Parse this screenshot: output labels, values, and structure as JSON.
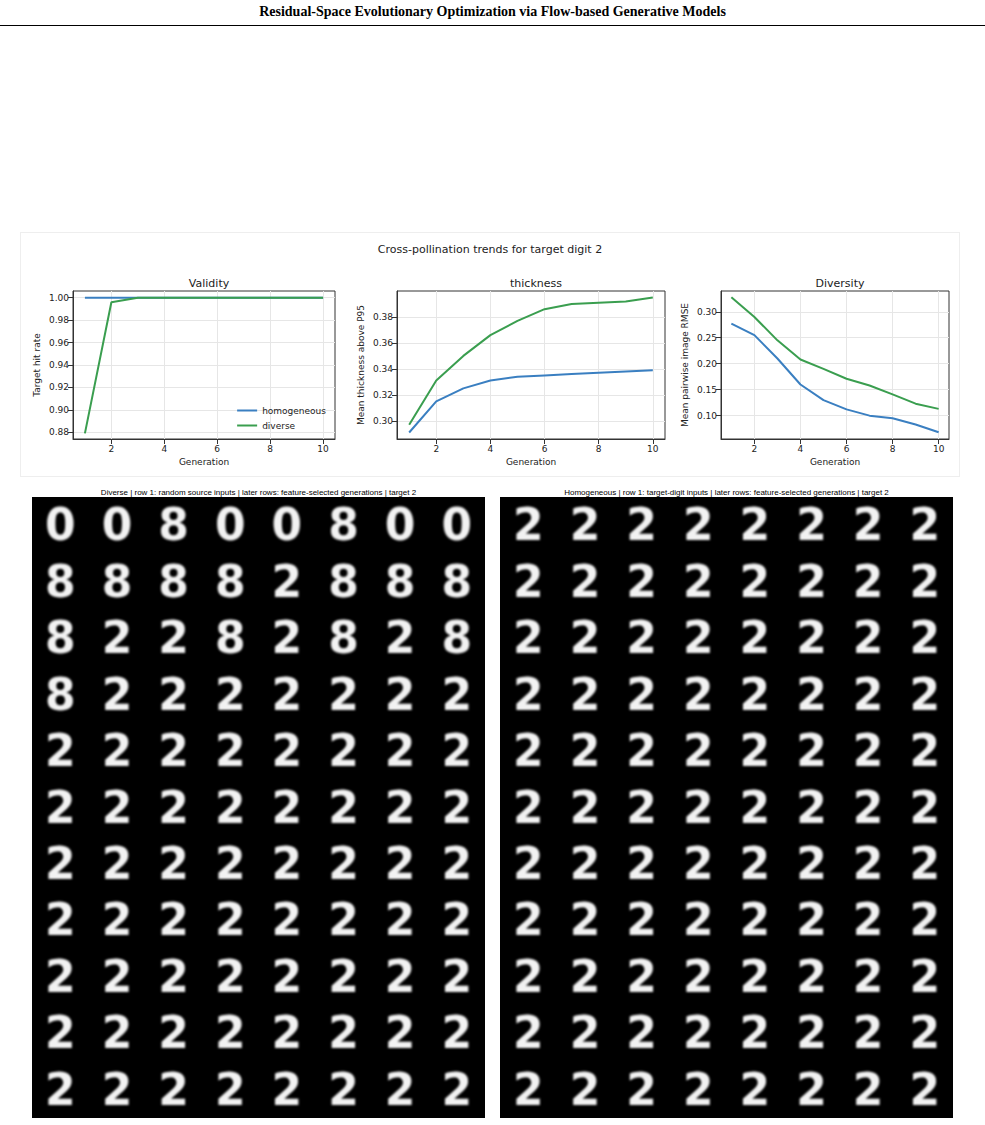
{
  "page_title": "Residual-Space Evolutionary Optimization via Flow-based Generative Models",
  "figure_title": "Cross-pollination trends for target digit 2",
  "chart_data": [
    {
      "type": "line",
      "title": "Validity",
      "x_label": "Generation",
      "y_label": "Target hit rate",
      "x": [
        1,
        2,
        3,
        4,
        5,
        6,
        7,
        8,
        9,
        10
      ],
      "series": [
        {
          "name": "homogeneous",
          "color": "#3a7fc1",
          "values": [
            1.0,
            1.0,
            1.0,
            1.0,
            1.0,
            1.0,
            1.0,
            1.0,
            1.0,
            1.0
          ]
        },
        {
          "name": "diverse",
          "color": "#3a9e4f",
          "values": [
            0.879,
            0.996,
            1.0,
            1.0,
            1.0,
            1.0,
            1.0,
            1.0,
            1.0,
            1.0
          ]
        }
      ],
      "xlim": [
        0.55,
        10.45
      ],
      "xticks": [
        2,
        4,
        6,
        8,
        10
      ],
      "ylim": [
        0.874,
        1.006
      ],
      "yticks": [
        {
          "value": 0.88,
          "label": "0.88"
        },
        {
          "value": 0.9,
          "label": "0.90"
        },
        {
          "value": 0.92,
          "label": "0.92"
        },
        {
          "value": 0.94,
          "label": "0.94"
        },
        {
          "value": 0.96,
          "label": "0.96"
        },
        {
          "value": 0.98,
          "label": "0.98"
        },
        {
          "value": 1.0,
          "label": "1.00"
        }
      ],
      "grid": true,
      "legend": "lower right"
    },
    {
      "type": "line",
      "title": "thickness",
      "x_label": "Generation",
      "y_label": "Mean thickness above P95",
      "x": [
        1,
        2,
        3,
        4,
        5,
        6,
        7,
        8,
        9,
        10
      ],
      "series": [
        {
          "name": "homogeneous",
          "color": "#3a7fc1",
          "values": [
            0.291,
            0.315,
            0.325,
            0.331,
            0.334,
            0.335,
            0.336,
            0.337,
            0.338,
            0.339
          ]
        },
        {
          "name": "diverse",
          "color": "#3a9e4f",
          "values": [
            0.297,
            0.331,
            0.35,
            0.366,
            0.377,
            0.386,
            0.39,
            0.391,
            0.392,
            0.395
          ]
        }
      ],
      "xlim": [
        0.55,
        10.45
      ],
      "xticks": [
        2,
        4,
        6,
        8,
        10
      ],
      "ylim": [
        0.286,
        0.4
      ],
      "yticks": [
        {
          "value": 0.3,
          "label": "0.30"
        },
        {
          "value": 0.32,
          "label": "0.32"
        },
        {
          "value": 0.34,
          "label": "0.34"
        },
        {
          "value": 0.36,
          "label": "0.36"
        },
        {
          "value": 0.38,
          "label": "0.38"
        }
      ],
      "grid": true
    },
    {
      "type": "line",
      "title": "Diversity",
      "x_label": "Generation",
      "y_label": "Mean pairwise image RMSE",
      "x": [
        1,
        2,
        3,
        4,
        5,
        6,
        7,
        8,
        9,
        10
      ],
      "series": [
        {
          "name": "homogeneous",
          "color": "#3a7fc1",
          "values": [
            0.277,
            0.255,
            0.21,
            0.16,
            0.13,
            0.112,
            0.1,
            0.095,
            0.083,
            0.068
          ]
        },
        {
          "name": "diverse",
          "color": "#3a9e4f",
          "values": [
            0.328,
            0.29,
            0.245,
            0.208,
            0.19,
            0.171,
            0.158,
            0.141,
            0.123,
            0.113
          ]
        }
      ],
      "xlim": [
        0.55,
        10.45
      ],
      "xticks": [
        2,
        4,
        6,
        8,
        10
      ],
      "ylim": [
        0.055,
        0.34
      ],
      "yticks": [
        {
          "value": 0.1,
          "label": "0.10"
        },
        {
          "value": 0.15,
          "label": "0.15"
        },
        {
          "value": 0.2,
          "label": "0.20"
        },
        {
          "value": 0.25,
          "label": "0.25"
        },
        {
          "value": 0.3,
          "label": "0.30"
        }
      ],
      "grid": true
    }
  ],
  "image_grids": [
    {
      "title": "Diverse | row 1: random source inputs | later rows: feature-selected generations | target 2",
      "rows": [
        [
          "0",
          "0",
          "8",
          "0",
          "0",
          "8",
          "0",
          "0"
        ],
        [
          "8",
          "8",
          "8",
          "8",
          "2",
          "8",
          "8",
          "8"
        ],
        [
          "8",
          "2",
          "2",
          "8",
          "2",
          "8",
          "2",
          "8"
        ],
        [
          "8",
          "2",
          "2",
          "2",
          "2",
          "2",
          "2",
          "2"
        ],
        [
          "2",
          "2",
          "2",
          "2",
          "2",
          "2",
          "2",
          "2"
        ],
        [
          "2",
          "2",
          "2",
          "2",
          "2",
          "2",
          "2",
          "2"
        ],
        [
          "2",
          "2",
          "2",
          "2",
          "2",
          "2",
          "2",
          "2"
        ],
        [
          "2",
          "2",
          "2",
          "2",
          "2",
          "2",
          "2",
          "2"
        ],
        [
          "2",
          "2",
          "2",
          "2",
          "2",
          "2",
          "2",
          "2"
        ],
        [
          "2",
          "2",
          "2",
          "2",
          "2",
          "2",
          "2",
          "2"
        ],
        [
          "2",
          "2",
          "2",
          "2",
          "2",
          "2",
          "2",
          "2"
        ]
      ]
    },
    {
      "title": "Homogeneous | row 1: target-digit inputs | later rows: feature-selected generations | target 2",
      "rows": [
        [
          "2",
          "2",
          "2",
          "2",
          "2",
          "2",
          "2",
          "2"
        ],
        [
          "2",
          "2",
          "2",
          "2",
          "2",
          "2",
          "2",
          "2"
        ],
        [
          "2",
          "2",
          "2",
          "2",
          "2",
          "2",
          "2",
          "2"
        ],
        [
          "2",
          "2",
          "2",
          "2",
          "2",
          "2",
          "2",
          "2"
        ],
        [
          "2",
          "2",
          "2",
          "2",
          "2",
          "2",
          "2",
          "2"
        ],
        [
          "2",
          "2",
          "2",
          "2",
          "2",
          "2",
          "2",
          "2"
        ],
        [
          "2",
          "2",
          "2",
          "2",
          "2",
          "2",
          "2",
          "2"
        ],
        [
          "2",
          "2",
          "2",
          "2",
          "2",
          "2",
          "2",
          "2"
        ],
        [
          "2",
          "2",
          "2",
          "2",
          "2",
          "2",
          "2",
          "2"
        ],
        [
          "2",
          "2",
          "2",
          "2",
          "2",
          "2",
          "2",
          "2"
        ],
        [
          "2",
          "2",
          "2",
          "2",
          "2",
          "2",
          "2",
          "2"
        ]
      ]
    }
  ]
}
